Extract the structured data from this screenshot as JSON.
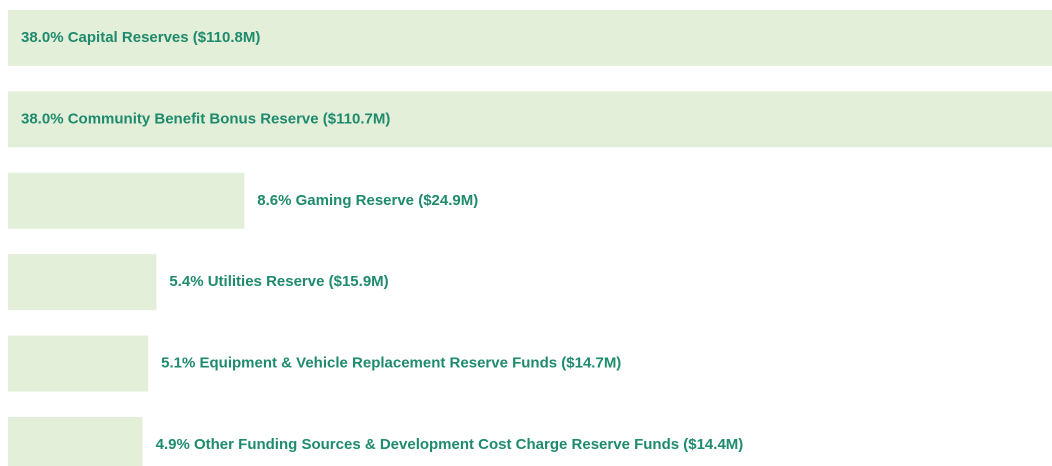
{
  "chart_data": {
    "type": "bar",
    "orientation": "horizontal",
    "color": "#e3efd8",
    "categories": [
      "Capital Reserves",
      "Community Benefit Bonus Reserve",
      "Gaming Reserve",
      "Utilities Reserve",
      "Equipment & Vehicle Replacement Reserve Funds",
      "Other Funding Sources & Development Cost Charge Reserve Funds"
    ],
    "values": [
      38.0,
      38.0,
      8.6,
      5.4,
      5.1,
      4.9
    ],
    "value_labels": [
      "38.0%",
      "38.0%",
      "8.6%",
      "5.4%",
      "5.1%",
      "4.9%"
    ],
    "amount_labels": [
      "($110.8M)",
      "($110.7M)",
      "($24.9M)",
      "($15.9M)",
      "($14.7M)",
      "($14.4M)"
    ]
  }
}
